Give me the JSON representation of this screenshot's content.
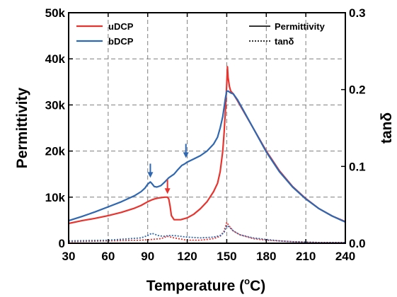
{
  "chart_data": {
    "type": "line",
    "xlabel": "Temperature (",
    "xlabel_sup": "o",
    "xlabel_unit": "C)",
    "ylabel": "Permittivity",
    "y2label": "tanδ",
    "xlim": [
      30,
      240
    ],
    "ylim": [
      0,
      50000
    ],
    "y2lim": [
      0,
      0.3
    ],
    "x_ticks": [
      30,
      60,
      90,
      120,
      150,
      180,
      210,
      240
    ],
    "x_tick_labels": [
      "30",
      "60",
      "90",
      "120",
      "150",
      "180",
      "210",
      "240"
    ],
    "y_ticks": [
      0,
      10000,
      20000,
      30000,
      40000,
      50000
    ],
    "y_tick_labels": [
      "0",
      "10k",
      "20k",
      "30k",
      "40k",
      "50k"
    ],
    "y2_ticks": [
      0,
      0.1,
      0.2,
      0.3
    ],
    "y2_tick_labels": [
      "0.0",
      "0.1",
      "0.2",
      "0.3"
    ],
    "grid": true,
    "legend_left": {
      "placement": "top-left",
      "entries": [
        "uDCP",
        "bDCP"
      ]
    },
    "legend_right": {
      "placement": "top-right",
      "entries": [
        "Permittivity",
        "tanδ"
      ]
    },
    "series": [
      {
        "name": "uDCP",
        "color": "#e8342f",
        "axis": "left",
        "style": "solid",
        "x": [
          30,
          40,
          50,
          60,
          70,
          80,
          85,
          90,
          93,
          95,
          98,
          100,
          103,
          105,
          106,
          107,
          108,
          110,
          115,
          120,
          125,
          130,
          135,
          140,
          143,
          145,
          147,
          148,
          149,
          150,
          150.5,
          151,
          152,
          153,
          155,
          158,
          160,
          170,
          180,
          190,
          200,
          210,
          220,
          230,
          240
        ],
        "y": [
          4300,
          4900,
          5400,
          6000,
          6700,
          7600,
          8200,
          9000,
          9400,
          9600,
          9800,
          9900,
          10000,
          10000,
          9600,
          8000,
          6000,
          5100,
          5100,
          5500,
          6300,
          7500,
          9000,
          11200,
          13000,
          15500,
          20000,
          24000,
          29000,
          34500,
          38300,
          36000,
          34000,
          33000,
          32400,
          31000,
          30000,
          25000,
          20000,
          15700,
          12300,
          9700,
          7500,
          5900,
          4700
        ]
      },
      {
        "name": "bDCP",
        "color": "#2f67b1",
        "axis": "left",
        "style": "solid",
        "x": [
          30,
          40,
          50,
          60,
          70,
          80,
          85,
          88,
          90,
          92,
          93,
          95,
          97,
          100,
          103,
          106,
          110,
          113,
          116,
          118,
          120,
          125,
          130,
          135,
          140,
          143,
          145,
          147,
          148,
          149,
          150,
          151,
          152,
          153,
          155,
          158,
          160,
          170,
          180,
          190,
          200,
          210,
          220,
          230,
          240
        ],
        "y": [
          4900,
          5800,
          6800,
          7900,
          9000,
          10300,
          11200,
          12000,
          12800,
          13300,
          13000,
          12300,
          12200,
          12500,
          13300,
          14200,
          15000,
          16000,
          16900,
          17200,
          17600,
          18300,
          19000,
          20000,
          21500,
          23000,
          25000,
          27500,
          29500,
          31500,
          33000,
          33000,
          32800,
          32600,
          32400,
          31200,
          30200,
          25000,
          19800,
          15500,
          12200,
          9600,
          7500,
          5900,
          4600
        ]
      },
      {
        "name": "uDCP",
        "color": "#e8342f",
        "axis": "right",
        "style": "dotted",
        "x": [
          30,
          60,
          85,
          93,
          100,
          105,
          110,
          120,
          130,
          140,
          145,
          148,
          150,
          152,
          155,
          160,
          170,
          180,
          190,
          200,
          220,
          240
        ],
        "y": [
          0.002,
          0.003,
          0.004,
          0.005,
          0.006,
          0.009,
          0.007,
          0.004,
          0.004,
          0.006,
          0.009,
          0.016,
          0.027,
          0.022,
          0.016,
          0.011,
          0.006,
          0.004,
          0.003,
          0.002,
          0.001,
          0.001
        ]
      },
      {
        "name": "bDCP",
        "color": "#2f67b1",
        "axis": "right",
        "style": "dotted",
        "x": [
          30,
          60,
          85,
          90,
          93,
          95,
          98,
          102,
          106,
          110,
          120,
          130,
          140,
          145,
          148,
          150,
          152,
          155,
          160,
          170,
          180,
          190,
          200,
          220,
          240
        ],
        "y": [
          0.003,
          0.004,
          0.007,
          0.01,
          0.013,
          0.012,
          0.01,
          0.009,
          0.01,
          0.01,
          0.008,
          0.007,
          0.008,
          0.01,
          0.014,
          0.023,
          0.021,
          0.016,
          0.011,
          0.007,
          0.005,
          0.003,
          0.002,
          0.001,
          0.001
        ]
      }
    ],
    "annotations": [
      {
        "type": "arrow",
        "color": "#2f67b1",
        "x": 92,
        "y_tip": 14200
      },
      {
        "type": "arrow",
        "color": "#e8342f",
        "x": 105,
        "y_tip": 10700
      },
      {
        "type": "arrow",
        "color": "#2f67b1",
        "x": 119,
        "y_tip": 18500
      }
    ]
  }
}
